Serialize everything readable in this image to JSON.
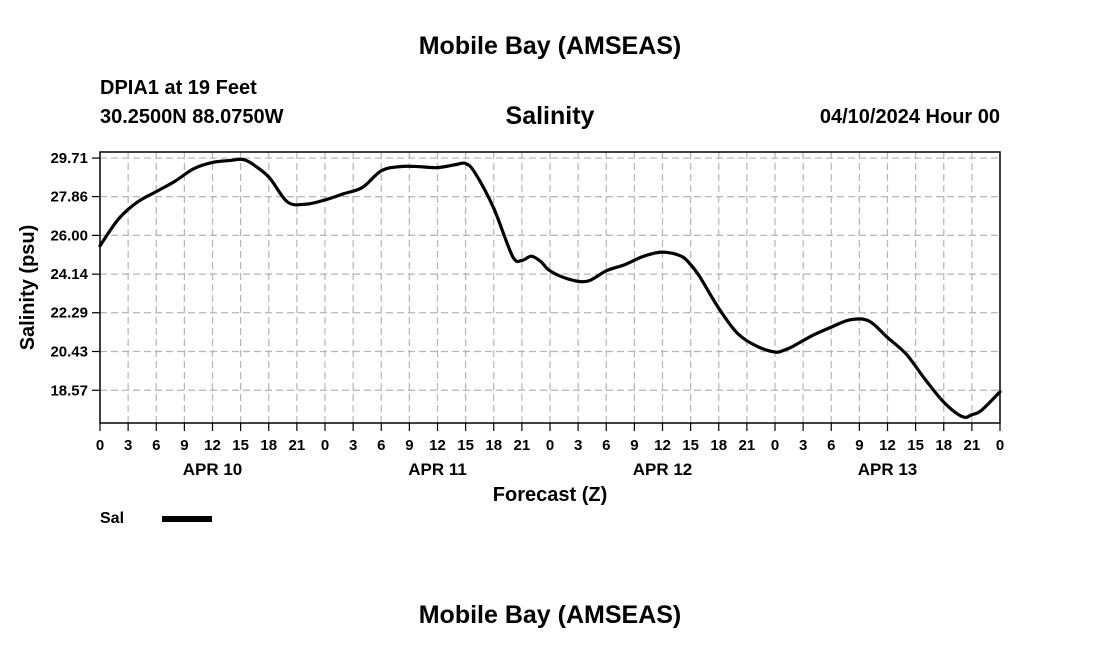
{
  "header": {
    "title": "Mobile Bay (AMSEAS)",
    "station": "DPIA1 at 19 Feet",
    "coords": "30.2500N  88.0750W",
    "run_time": "04/10/2024 Hour 00"
  },
  "footer": {
    "title": "Mobile Bay (AMSEAS)"
  },
  "legend": {
    "label": "Sal"
  },
  "chart_data": {
    "type": "line",
    "title": "Salinity",
    "xlabel": "Forecast (Z)",
    "ylabel": "Salinity (psu)",
    "ylim": [
      17.0,
      30.0
    ],
    "xlim_hours": [
      0,
      96
    ],
    "grid": true,
    "line_color": "#000000",
    "y_ticks": [
      "29.71",
      "27.86",
      "26.00",
      "24.14",
      "22.29",
      "20.43",
      "18.57"
    ],
    "x_tick_hours": [
      0,
      3,
      6,
      9,
      12,
      15,
      18,
      21,
      24,
      27,
      30,
      33,
      36,
      39,
      42,
      45,
      48,
      51,
      54,
      57,
      60,
      63,
      66,
      69,
      72,
      75,
      78,
      81,
      84,
      87,
      90,
      93,
      96
    ],
    "x_tick_labels": [
      "0",
      "3",
      "6",
      "9",
      "12",
      "15",
      "18",
      "21",
      "0",
      "3",
      "6",
      "9",
      "12",
      "15",
      "18",
      "21",
      "0",
      "3",
      "6",
      "9",
      "12",
      "15",
      "18",
      "21",
      "0",
      "3",
      "6",
      "9",
      "12",
      "15",
      "18",
      "21",
      "0"
    ],
    "date_labels": [
      {
        "hour": 12,
        "label": "APR 10"
      },
      {
        "hour": 36,
        "label": "APR 11"
      },
      {
        "hour": 60,
        "label": "APR 12"
      },
      {
        "hour": 84,
        "label": "APR 13"
      }
    ],
    "series": [
      {
        "name": "Sal",
        "x": [
          0,
          2,
          4,
          6,
          8,
          10,
          12,
          14,
          15,
          16,
          18,
          20,
          22,
          24,
          26,
          28,
          30,
          32,
          34,
          36,
          38,
          39,
          40,
          42,
          44,
          45,
          46,
          47,
          48,
          50,
          52,
          54,
          56,
          58,
          60,
          62,
          63,
          64,
          66,
          68,
          70,
          72,
          73,
          74,
          76,
          78,
          80,
          82,
          84,
          86,
          88,
          90,
          92,
          93,
          94,
          96
        ],
        "y": [
          25.5,
          26.8,
          27.6,
          28.1,
          28.6,
          29.2,
          29.5,
          29.6,
          29.65,
          29.5,
          28.8,
          27.6,
          27.5,
          27.7,
          28.0,
          28.3,
          29.1,
          29.3,
          29.3,
          29.25,
          29.4,
          29.45,
          29.0,
          27.3,
          25.0,
          24.8,
          25.0,
          24.75,
          24.3,
          23.9,
          23.8,
          24.3,
          24.6,
          25.0,
          25.2,
          25.0,
          24.6,
          24.0,
          22.5,
          21.3,
          20.7,
          20.4,
          20.5,
          20.7,
          21.2,
          21.6,
          21.95,
          21.9,
          21.1,
          20.3,
          19.1,
          18.0,
          17.3,
          17.4,
          17.6,
          18.5
        ]
      }
    ]
  }
}
